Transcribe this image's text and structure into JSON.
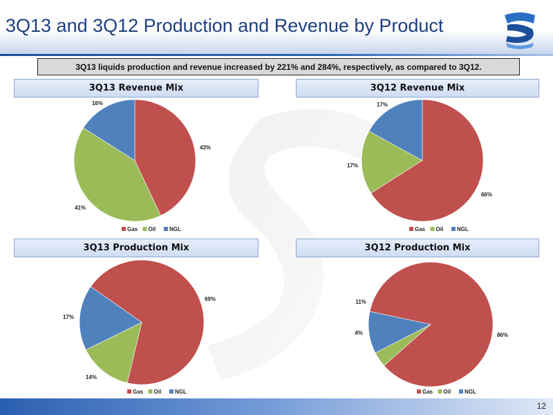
{
  "slide": {
    "title": "3Q13 and 3Q12 Production and Revenue by Product",
    "banner": "3Q13 liquids production and revenue increased by 221% and 284%, respectively, as compared to 3Q12.",
    "page_number": "12"
  },
  "colors": {
    "Gas": "#c0504d",
    "Oil": "#9bbb59",
    "NGL": "#4f81bd"
  },
  "chart_data": [
    {
      "type": "pie",
      "title": "3Q13 Revenue Mix",
      "categories": [
        "Gas",
        "Oil",
        "NGL"
      ],
      "values": [
        43,
        41,
        16
      ],
      "labels": [
        "43%",
        "41%",
        "16%"
      ],
      "legend": [
        "Gas",
        "Oil",
        "NGL"
      ],
      "legend_position": "bottom"
    },
    {
      "type": "pie",
      "title": "3Q12 Revenue Mix",
      "categories": [
        "Gas",
        "Oil",
        "NGL"
      ],
      "values": [
        66,
        17,
        17
      ],
      "labels": [
        "66%",
        "17%",
        "17%"
      ],
      "legend": [
        "Gas",
        "Oil",
        "NGL"
      ],
      "legend_position": "bottom"
    },
    {
      "type": "pie",
      "title": "3Q13 Production Mix",
      "categories": [
        "Gas",
        "Oil",
        "NGL"
      ],
      "values": [
        69,
        14,
        17
      ],
      "labels": [
        "69%",
        "14%",
        "17%"
      ],
      "legend": [
        "Gas",
        "Oil",
        "NGL"
      ],
      "legend_position": "bottom"
    },
    {
      "type": "pie",
      "title": "3Q12 Production Mix",
      "categories": [
        "Gas",
        "Oil",
        "NGL"
      ],
      "values": [
        86,
        4,
        11
      ],
      "labels": [
        "86%",
        "4%",
        "11%"
      ],
      "legend": [
        "Gas",
        "Oil",
        "NGL"
      ],
      "legend_position": "bottom"
    }
  ]
}
